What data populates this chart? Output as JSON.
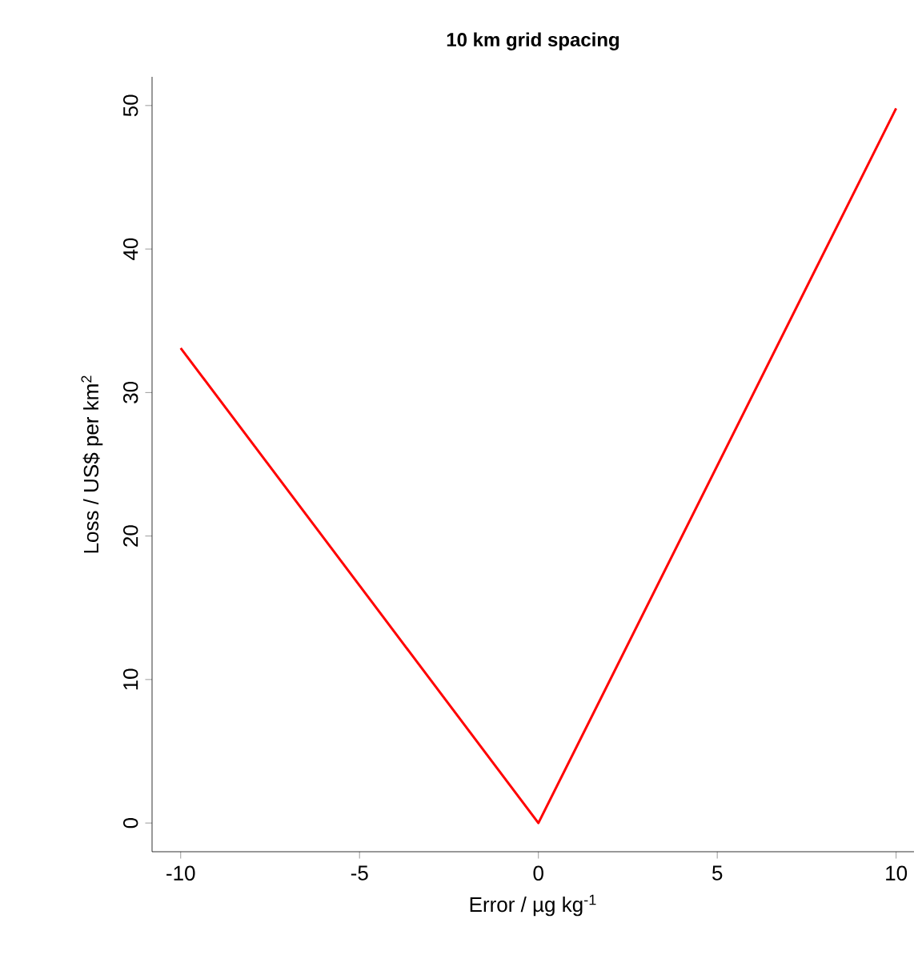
{
  "chart_data": {
    "type": "line",
    "title": "10 km grid spacing",
    "xlabel": "Error / µg kg$^{-1}$",
    "ylabel": "Loss / US$ per km$^{2}$",
    "x": [
      -10,
      0,
      10
    ],
    "series": [
      {
        "color": "#ff0000",
        "values": [
          33.1,
          0,
          49.8
        ]
      }
    ],
    "xlim": [
      -10.8,
      10.5
    ],
    "ylim": [
      -2,
      52
    ],
    "xticks": [
      -10,
      -5,
      0,
      5,
      10
    ],
    "yticks": [
      0,
      10,
      20,
      30,
      40,
      50
    ],
    "grid": false,
    "marker": "none",
    "line_style": "solid"
  }
}
